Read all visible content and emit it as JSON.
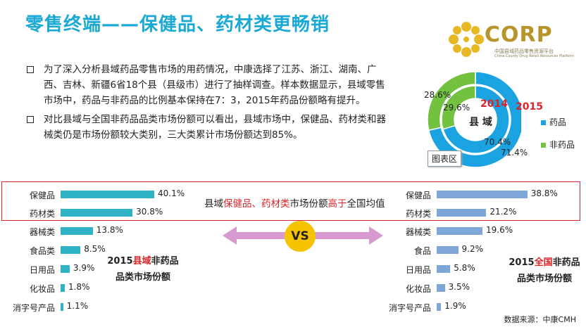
{
  "title": "零售终端——保健品、药材类更畅销",
  "logo": {
    "text": "CORP",
    "subtitle_cn": "中国县域药品零售资源平台",
    "subtitle_en": "China County Drug Retail Resources Platform"
  },
  "bullets": [
    "为了深入分析县域药品零售市场的用药情况，中康选择了江苏、浙江、湖南、广西、吉林、新疆6省18个县（县级市）进行了抽样调查。样本数据显示，县域零售市场中，药品与非药品的比例基本保持在7：3，2015年药品份额略有提升。",
    "对比县域与全国非药品品类市场份额可以看出，县域市场中，保健品、药材类和器械类仍是市场份额较大类别，三大类累计市场份额达到85%。"
  ],
  "highlight": {
    "pre": "县域",
    "red1": "保健品、药材类",
    "mid": "市场份额",
    "red2": "高于",
    "post": "全国均值"
  },
  "vs_label": "VS",
  "tooltip": "图表区",
  "source": "数据来源：中康CMH",
  "colors": {
    "title": "#1aa9d6",
    "drug": "#1aa3e0",
    "nondrug": "#72c13f",
    "county_bar": "#2fb3c4",
    "national_bar": "#7ea7d8",
    "red": "#d9252a",
    "vs": "#f5c300",
    "arrow": "#d79ad0"
  },
  "chart_data": [
    {
      "type": "pie",
      "variant": "double-donut",
      "center_label": "县 域",
      "legend": [
        "药品",
        "非药品"
      ],
      "legend_position": "right",
      "rings": [
        {
          "name": "2014",
          "values": [
            70.4,
            29.6
          ],
          "labels": [
            "70.4%",
            "29.6%"
          ]
        },
        {
          "name": "2015",
          "values": [
            71.4,
            28.6
          ],
          "labels": [
            "71.4%",
            "28.6%"
          ]
        }
      ]
    },
    {
      "type": "bar",
      "orientation": "horizontal",
      "caption_line1_pre": "2015",
      "caption_line1_red": "县域",
      "caption_line1_post": "非药品",
      "caption_line2": "品类市场份额",
      "categories": [
        "保健品",
        "药材类",
        "器械类",
        "食品类",
        "日用品",
        "化妆品",
        "消字号产品"
      ],
      "values": [
        40.1,
        30.8,
        13.8,
        8.5,
        3.9,
        1.8,
        1.1
      ],
      "labels": [
        "40.1%",
        "30.8%",
        "13.8%",
        "8.5%",
        "3.9%",
        "1.8%",
        "1.1%"
      ],
      "xlim": [
        0,
        40.1
      ]
    },
    {
      "type": "bar",
      "orientation": "horizontal",
      "caption_line1_pre": "2015",
      "caption_line1_red": "全国",
      "caption_line1_post": "非药品",
      "caption_line2": "品类市场份额",
      "categories": [
        "保健品",
        "药材类",
        "器械类",
        "食品",
        "日用品",
        "化妆品",
        "消字号产品"
      ],
      "values": [
        38.8,
        21.2,
        19.6,
        9.2,
        5.8,
        3.5,
        1.9
      ],
      "labels": [
        "38.8%",
        "21.2%",
        "19.6%",
        "9.2%",
        "5.8%",
        "3.5%",
        "1.9%"
      ],
      "xlim": [
        0,
        40.1
      ]
    }
  ]
}
